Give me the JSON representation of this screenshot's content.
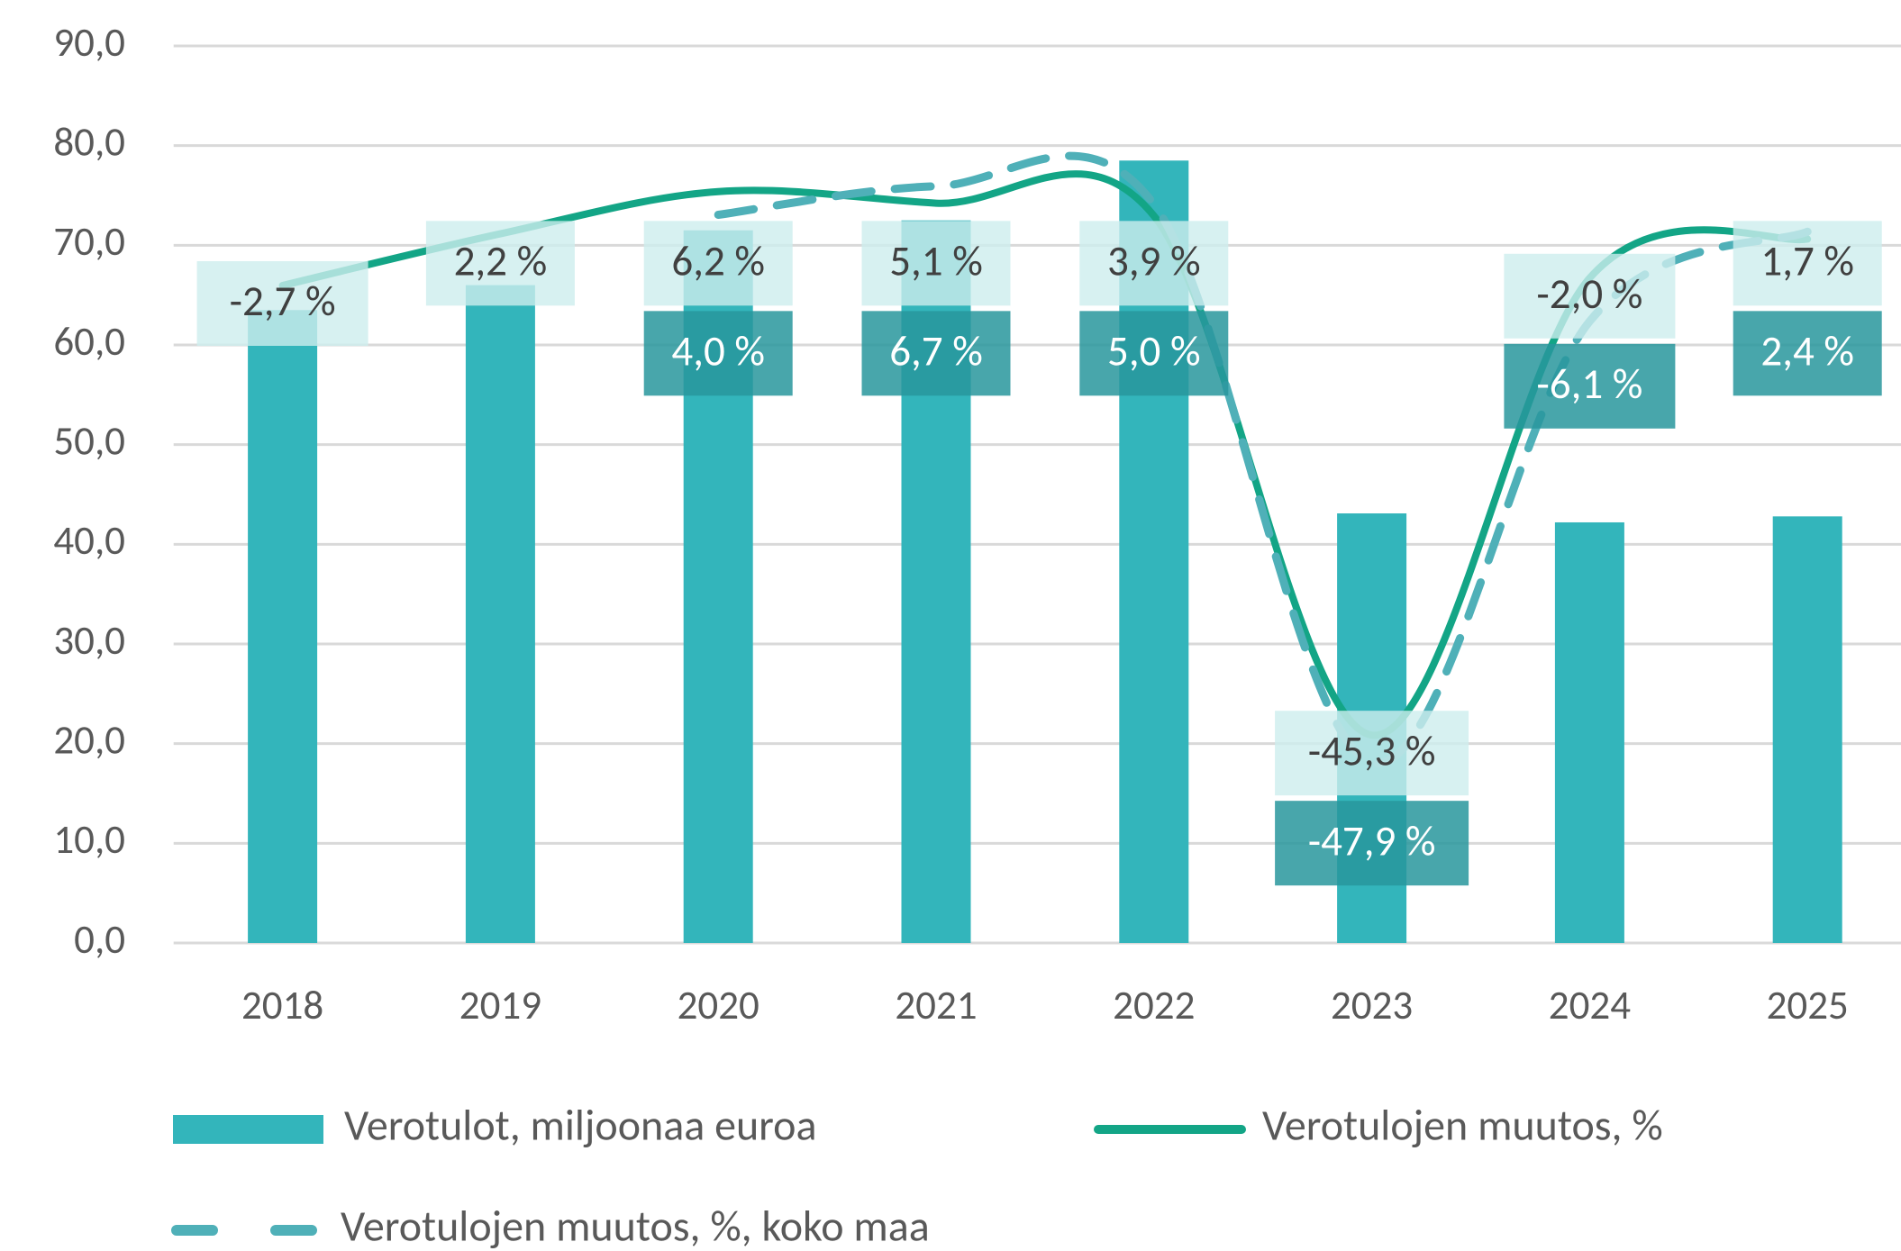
{
  "chart_data": {
    "type": "bar",
    "categories": [
      "2018",
      "2019",
      "2020",
      "2021",
      "2022",
      "2023",
      "2024",
      "2025"
    ],
    "series": [
      {
        "name": "Verotulot, miljoonaa euroa",
        "type": "bar",
        "color": "#33b5bb",
        "values": [
          63.5,
          66.0,
          71.5,
          72.5,
          78.5,
          43.1,
          42.2,
          42.8
        ]
      },
      {
        "name": "Verotulojen muutos, %",
        "type": "line",
        "axis": "y2",
        "color": "#13a586",
        "dashed": false,
        "values": [
          -2.7,
          2.2,
          6.2,
          5.1,
          3.9,
          -45.3,
          -2.0,
          1.7
        ],
        "value_labels": [
          "-2,7 %",
          "2,2 %",
          "6,2 %",
          "5,1 %",
          "3,9 %",
          "-45,3 %",
          "-2,0 %",
          "1,7 %"
        ]
      },
      {
        "name": "Verotulojen muutos, %, koko maa",
        "type": "line",
        "axis": "y2",
        "color": "#4fb0b8",
        "dashed": true,
        "values": [
          null,
          null,
          4.0,
          6.7,
          5.0,
          -47.9,
          -6.1,
          2.4
        ],
        "value_labels": [
          null,
          null,
          "4,0 %",
          "6,7 %",
          "5,0 %",
          "-47,9 %",
          "-6,1 %",
          "2,4 %"
        ]
      }
    ],
    "ylim": [
      0,
      90
    ],
    "yticks": [
      {
        "value": 0,
        "label": "0,0"
      },
      {
        "value": 10,
        "label": "10,0"
      },
      {
        "value": 20,
        "label": "20,0"
      },
      {
        "value": 30,
        "label": "30,0"
      },
      {
        "value": 40,
        "label": "40,0"
      },
      {
        "value": 50,
        "label": "50,0"
      },
      {
        "value": 60,
        "label": "60,0"
      },
      {
        "value": 70,
        "label": "70,0"
      },
      {
        "value": 80,
        "label": "80,0"
      },
      {
        "value": 90,
        "label": "90,0"
      }
    ],
    "y2lim": [
      -65,
      20
    ],
    "grid": true
  }
}
